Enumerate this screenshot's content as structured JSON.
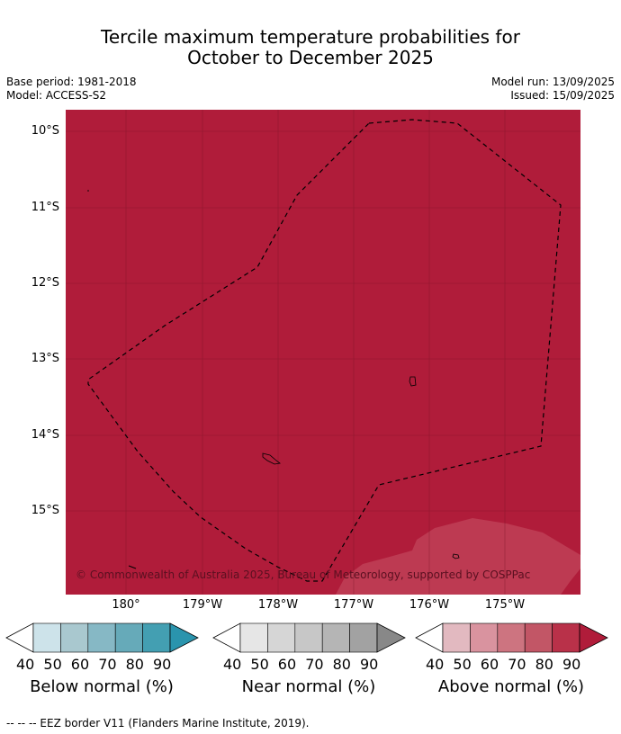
{
  "title_line1": "Tercile maximum temperature probabilities for",
  "title_line2": "October to December 2025",
  "meta_left": [
    "Base period: 1981-2018",
    "Model: ACCESS-S2"
  ],
  "meta_right": [
    "Model run: 13/09/2025",
    "Issued: 15/09/2025"
  ],
  "lat_labels": [
    "10°S",
    "11°S",
    "12°S",
    "13°S",
    "14°S",
    "15°S"
  ],
  "lon_labels": [
    "180°",
    "179°W",
    "178°W",
    "177°W",
    "176°W",
    "175°W"
  ],
  "copyright": "© Commonwealth of Australia 2025, Bureau of Meteorology, supported by COSPPac",
  "colorbars": [
    {
      "name": "Below normal (%)",
      "ticks": [
        "40",
        "50",
        "60",
        "70",
        "80",
        "90"
      ],
      "colors": [
        "#cde3ea",
        "#a9c8cf",
        "#86b8c5",
        "#66aab9",
        "#439fb2",
        "#2a94ad"
      ]
    },
    {
      "name": "Near normal (%)",
      "ticks": [
        "40",
        "50",
        "60",
        "70",
        "80",
        "90"
      ],
      "colors": [
        "#e6e6e6",
        "#d6d6d6",
        "#c7c7c7",
        "#b5b5b5",
        "#a2a2a2",
        "#888888"
      ]
    },
    {
      "name": "Above normal (%)",
      "ticks": [
        "40",
        "50",
        "60",
        "70",
        "80",
        "90"
      ],
      "colors": [
        "#e2b9c0",
        "#d9939f",
        "#cd7480",
        "#c25666",
        "#b93149",
        "#b01c3a"
      ]
    }
  ],
  "footer": "--  --  -- EEZ border V11 (Flanders Marine Institute, 2019).",
  "colors": {
    "above_90": "#b01c3a",
    "above_80": "#bd3a52"
  }
}
